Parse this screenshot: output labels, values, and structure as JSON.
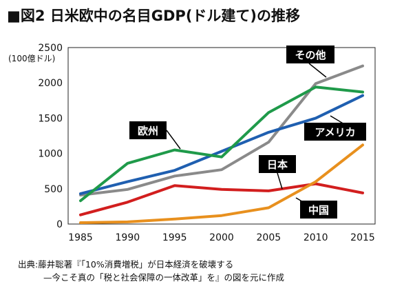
{
  "chart_data": {
    "type": "line",
    "title": "■図2 日米欧中の名目GDP(ドル建て)の推移",
    "unit": "(100億ドル)",
    "x": [
      1985,
      1990,
      1995,
      2000,
      2005,
      2010,
      2015
    ],
    "ylim": [
      0,
      2500
    ],
    "yticks": [
      0,
      500,
      1000,
      1500,
      2000,
      2500
    ],
    "grid": false,
    "series": [
      {
        "name": "その他",
        "color": "#8a8a8a",
        "values": [
          410,
          490,
          680,
          770,
          1160,
          1990,
          2240
        ]
      },
      {
        "name": "アメリカ",
        "color": "#1f5fb0",
        "values": [
          430,
          600,
          760,
          1030,
          1300,
          1500,
          1820
        ]
      },
      {
        "name": "欧州",
        "color": "#1f9a4a",
        "values": [
          330,
          860,
          1050,
          950,
          1580,
          1940,
          1870
        ]
      },
      {
        "name": "日本",
        "color": "#d21e1e",
        "values": [
          130,
          310,
          545,
          490,
          470,
          570,
          440
        ]
      },
      {
        "name": "中国",
        "color": "#e8901e",
        "values": [
          20,
          30,
          70,
          120,
          230,
          600,
          1120
        ]
      }
    ]
  },
  "labels": {
    "other": "その他",
    "usa": "アメリカ",
    "europe": "欧州",
    "japan": "日本",
    "china": "中国"
  },
  "source": {
    "line1": "出典:藤井聡著『「10%消費増税」が日本経済を破壊する",
    "line2": "—今こそ真の「税と社会保障の一体改革」を』の図を元に作成"
  }
}
